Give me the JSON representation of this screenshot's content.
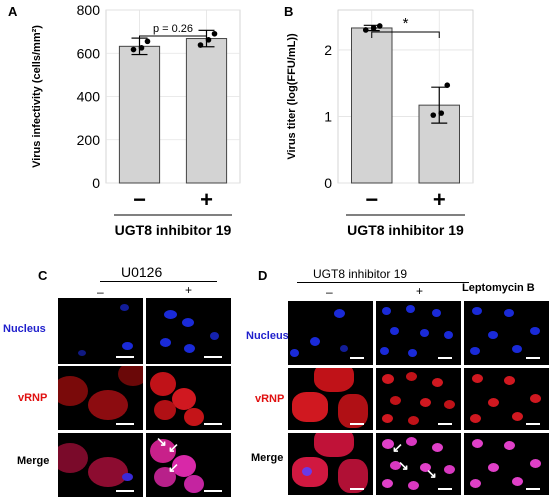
{
  "panels": {
    "a": {
      "letter": "A"
    },
    "b": {
      "letter": "B"
    },
    "c": {
      "letter": "C",
      "group_label": "U0126",
      "col_minus": "–",
      "col_plus": "+",
      "rows": [
        "Nucleus",
        "vRNP",
        "Merge"
      ]
    },
    "d": {
      "letter": "D",
      "group_label": "UGT8 inhibitor 19",
      "col_minus": "–",
      "col_plus": "+",
      "extra_label": "Leptomycin B",
      "rows": [
        "Nucleus",
        "vRNP",
        "Merge"
      ]
    }
  },
  "colors": {
    "bar": "#d3d3d3",
    "nucleus_label": "#1f1fcc",
    "vrnp_label": "#e01010",
    "nucleus": "#1a2ad8",
    "vrnp": "#e0181c",
    "merge": "#e040c8"
  },
  "icons": [
    "arrow-icon"
  ],
  "chart_data": [
    {
      "type": "bar",
      "categories": [
        "−",
        "+"
      ],
      "values": [
        632,
        668
      ],
      "error": [
        38,
        38
      ],
      "points": [
        [
          617,
          625,
          655
        ],
        [
          638,
          662,
          690
        ]
      ],
      "ylabel": "Virus infectivity (cells/mm²)",
      "xlabel": "UGT8 inhibitor 19",
      "ylim": [
        0,
        800
      ],
      "yticks": [
        0,
        200,
        400,
        600,
        800
      ],
      "annotation": "p = 0.26",
      "grid": true
    },
    {
      "type": "bar",
      "categories": [
        "−",
        "+"
      ],
      "values": [
        2.33,
        1.17
      ],
      "error": [
        0.04,
        0.27
      ],
      "points": [
        [
          2.3,
          2.33,
          2.36
        ],
        [
          1.02,
          1.05,
          1.47
        ]
      ],
      "ylabel": "Virus titer (log(FFU/mL))",
      "xlabel": "UGT8 inhibitor 19",
      "ylim": [
        0,
        2.6
      ],
      "yticks": [
        0,
        1,
        2
      ],
      "annotation": "*",
      "grid": true
    }
  ]
}
